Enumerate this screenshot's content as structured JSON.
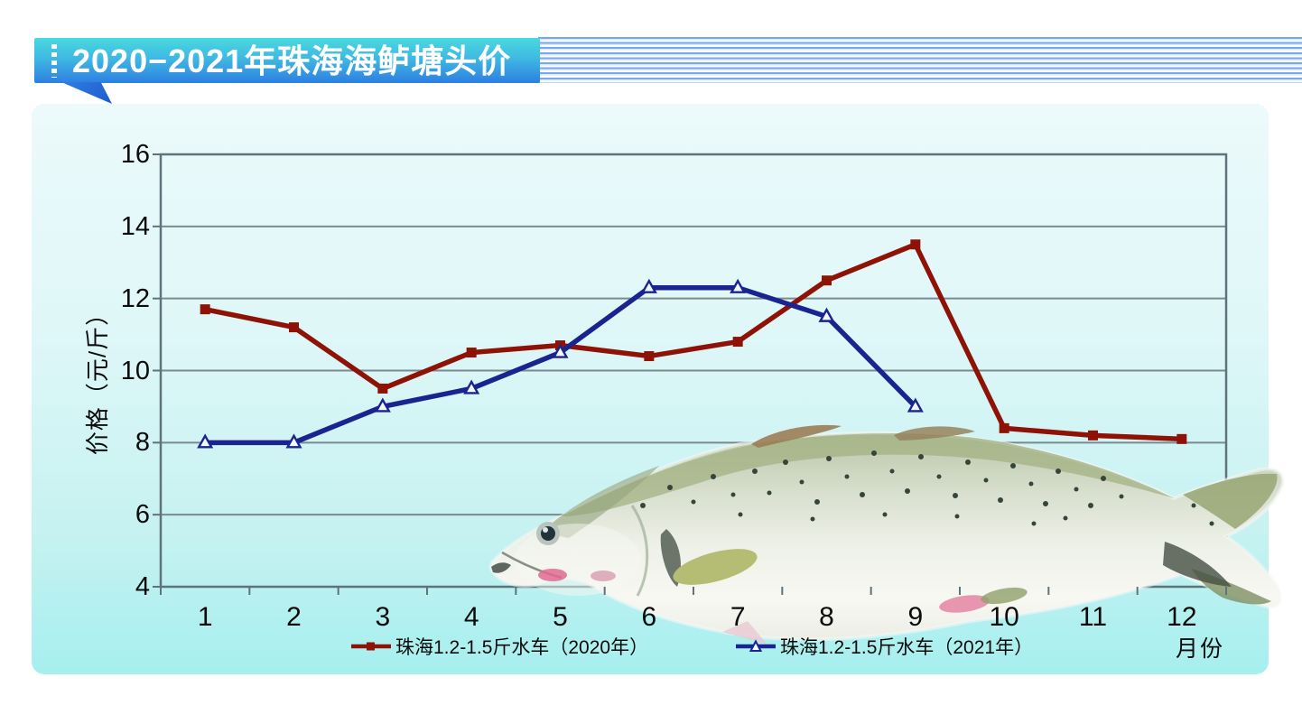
{
  "banner": {
    "title": "2020−2021年珠海海鲈塘头价"
  },
  "chart_data": {
    "type": "line",
    "title": "2020−2021年珠海海鲈塘头价",
    "xlabel": "月份",
    "ylabel": "价格（元/斤）",
    "x": [
      1,
      2,
      3,
      4,
      5,
      6,
      7,
      8,
      9,
      10,
      11,
      12
    ],
    "ylim": [
      4,
      16
    ],
    "ytick_step": 2,
    "grid": "horizontal",
    "legend_position": "bottom",
    "series": [
      {
        "name": "珠海1.2-1.5斤水车（2020年）",
        "color": "#8E1206",
        "marker": "square",
        "values": [
          11.7,
          11.2,
          9.5,
          10.5,
          10.7,
          10.4,
          10.8,
          12.5,
          13.5,
          8.4,
          8.2,
          8.1
        ]
      },
      {
        "name": "珠海1.2-1.5斤水车（2021年）",
        "color": "#1A2490",
        "marker": "triangle-open",
        "values": [
          8.0,
          8.0,
          9.0,
          9.5,
          10.5,
          12.3,
          12.3,
          11.5,
          9.0
        ]
      }
    ]
  },
  "colors": {
    "banner_top": "#49D9DF",
    "banner_bottom": "#2E7FE2",
    "panel_top": "#ECFAFB",
    "panel_bottom": "#A6EFEF",
    "grid_line": "#7B8A8F",
    "axis_border": "#5F737B",
    "stripe_line": "#78A9EF"
  }
}
